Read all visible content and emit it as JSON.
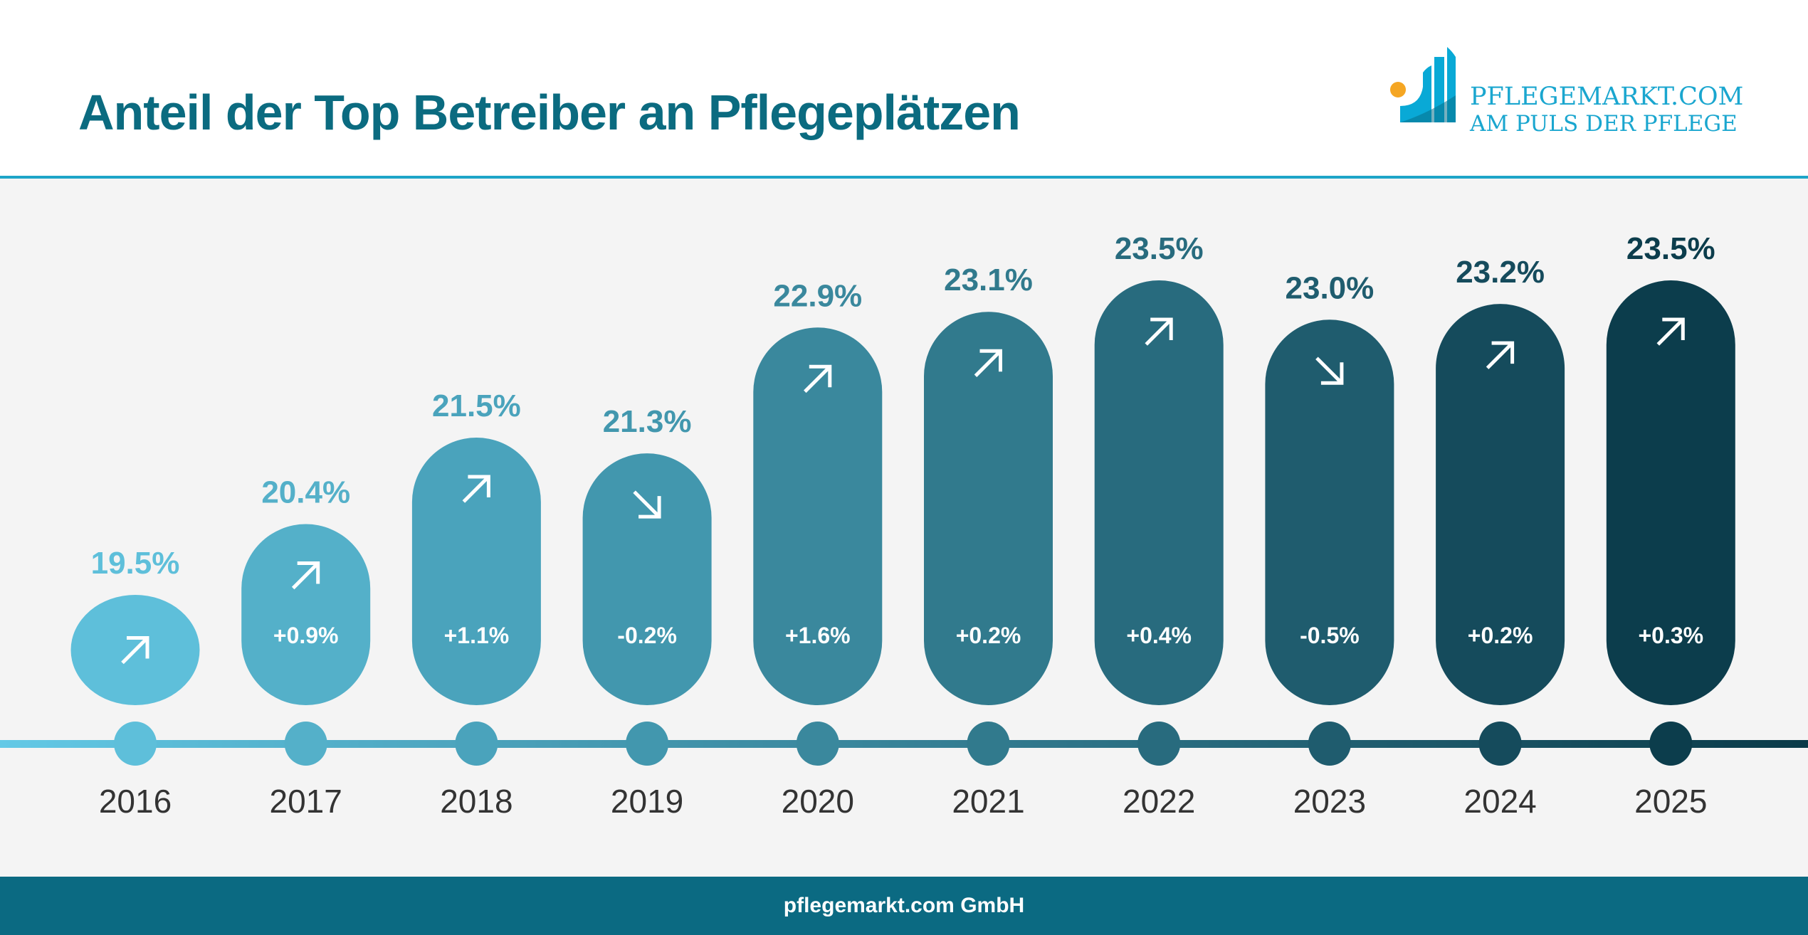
{
  "header": {
    "title": "Anteil der Top Betreiber an Pflegeplätzen"
  },
  "logo": {
    "name": "PFLEGEMARKT.COM",
    "tagline": "AM PULS DER PFLEGE"
  },
  "footer": {
    "text": "pflegemarkt.com GmbH"
  },
  "chart_data": {
    "type": "bar",
    "title": "Anteil der Top Betreiber an Pflegeplätzen",
    "categories": [
      "2016",
      "2017",
      "2018",
      "2019",
      "2020",
      "2021",
      "2022",
      "2023",
      "2024",
      "2025"
    ],
    "values": [
      19.5,
      20.4,
      21.5,
      21.3,
      22.9,
      23.1,
      23.5,
      23.0,
      23.2,
      23.5
    ],
    "value_labels": [
      "19.5%",
      "20.4%",
      "21.5%",
      "21.3%",
      "22.9%",
      "23.1%",
      "23.5%",
      "23.0%",
      "23.2%",
      "23.5%"
    ],
    "changes": [
      null,
      "+0.9%",
      "+1.1%",
      "-0.2%",
      "+1.6%",
      "+0.2%",
      "+0.4%",
      "-0.5%",
      "+0.2%",
      "+0.3%"
    ],
    "trend_icons": [
      "arrow-up-right",
      "arrow-up-right",
      "arrow-up-right",
      "arrow-down-right",
      "arrow-up-right",
      "arrow-up-right",
      "arrow-up-right",
      "arrow-down-right",
      "arrow-up-right",
      "arrow-up-right"
    ],
    "unit": "%",
    "grid": false,
    "colors": [
      "#5ebfda",
      "#54b0c9",
      "#4aa3bc",
      "#4297ae",
      "#3a889d",
      "#317a8d",
      "#286b7e",
      "#1f5c6e",
      "#154b5c",
      "#0c3d4c"
    ],
    "year_label_color": "#333333"
  }
}
